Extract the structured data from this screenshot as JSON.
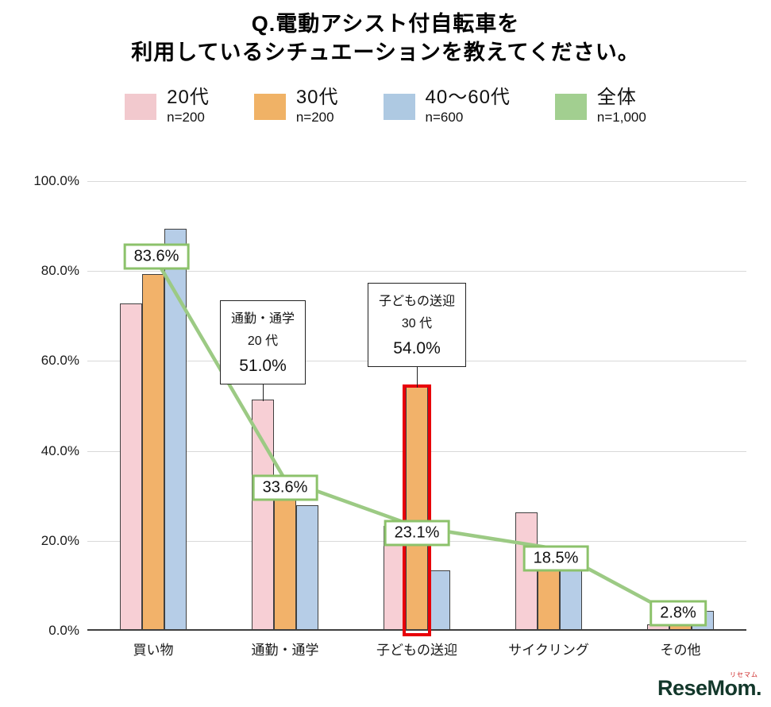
{
  "title": {
    "line1": "Q.電動アシスト付自転車を",
    "line2": "利用しているシチュエーションを教えてください。"
  },
  "legend": [
    {
      "label": "20代",
      "n": "n=200",
      "color": "#f2c9ce"
    },
    {
      "label": "30代",
      "n": "n=200",
      "color": "#f0b266"
    },
    {
      "label": "40〜60代",
      "n": "n=600",
      "color": "#aec9e2"
    },
    {
      "label": "全体",
      "n": "n=1,000",
      "color": "#a2cf90"
    }
  ],
  "chart_data": {
    "type": "bar",
    "title": "Q.電動アシスト付自転車を利用しているシチュエーションを教えてください。",
    "categories": [
      "買い物",
      "通勤・通学",
      "子どもの送迎",
      "サイクリング",
      "その他"
    ],
    "series": [
      {
        "name": "20代",
        "values": [
          72.5,
          51.0,
          23.0,
          26.0,
          1.0
        ],
        "color": "#f7cfd5"
      },
      {
        "name": "30代",
        "values": [
          79.0,
          33.0,
          54.0,
          18.0,
          2.0
        ],
        "color": "#f2b26a"
      },
      {
        "name": "40〜60代",
        "values": [
          89.0,
          27.5,
          13.0,
          14.0,
          4.0
        ],
        "color": "#b6cde7"
      },
      {
        "name": "全体",
        "type": "line",
        "values": [
          83.6,
          33.6,
          23.1,
          18.5,
          2.8
        ],
        "color": "#9cca84"
      }
    ],
    "ylim": [
      0,
      100
    ],
    "grid": true,
    "legend_position": "top",
    "yticks": [
      "100.0%",
      "80.0%",
      "60.0%",
      "40.0%",
      "20.0%",
      "0.0%"
    ],
    "line_labels": [
      "83.6%",
      "33.6%",
      "23.1%",
      "18.5%",
      "2.8%"
    ],
    "line_label_border": "#8cc26b",
    "callouts": [
      {
        "lines": [
          "通勤・通学",
          "20 代",
          "51.0%"
        ],
        "category": 1,
        "series": 0
      },
      {
        "lines": [
          "子どもの送迎",
          "30 代",
          "54.0%"
        ],
        "category": 2,
        "series": 1
      }
    ],
    "highlight": {
      "category": 2,
      "series": 1,
      "color": "#e8000a"
    }
  },
  "logo": {
    "text": "ReseMom.",
    "ruby": "リセマム"
  }
}
